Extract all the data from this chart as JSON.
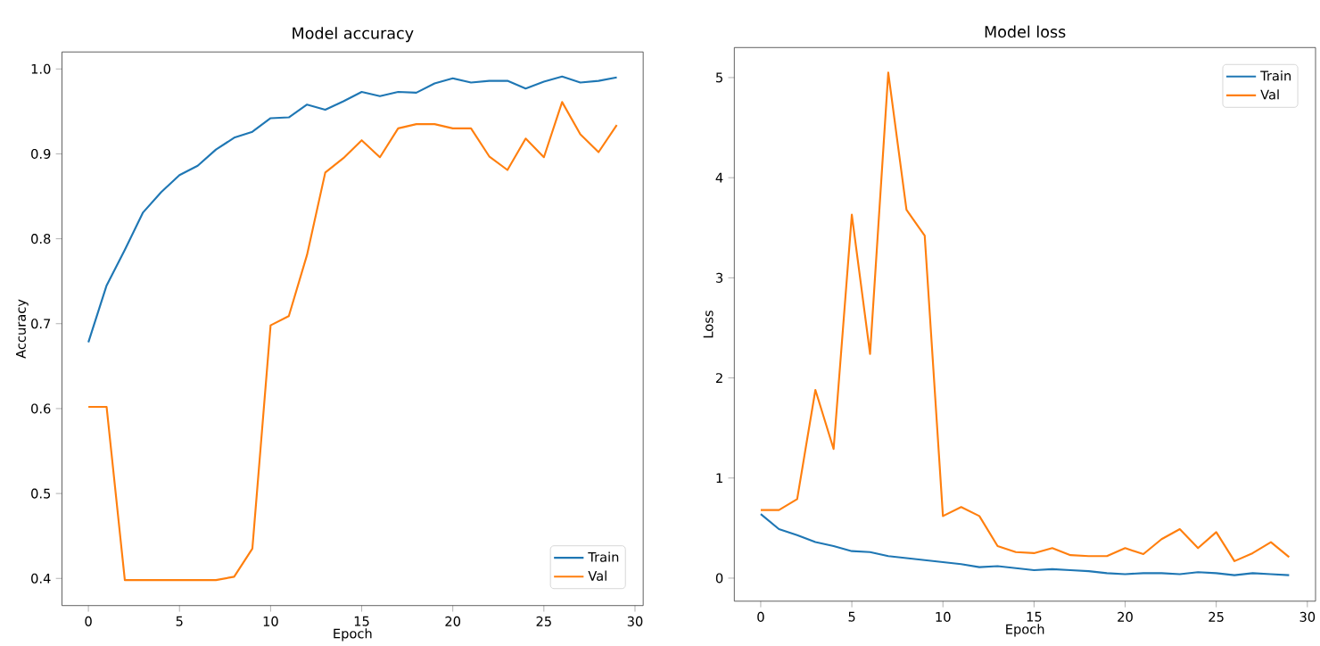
{
  "chart_data": [
    {
      "type": "line",
      "title": "Model accuracy",
      "xlabel": "Epoch",
      "ylabel": "Accuracy",
      "legend": "bottom right",
      "x": [
        0,
        1,
        2,
        3,
        4,
        5,
        6,
        7,
        8,
        9,
        10,
        11,
        12,
        13,
        14,
        15,
        16,
        17,
        18,
        19,
        20,
        21,
        22,
        23,
        24,
        25,
        26,
        27,
        28,
        29
      ],
      "xlim": [
        -1.45,
        30.45
      ],
      "xticks": [
        0,
        5,
        10,
        15,
        20,
        25,
        30
      ],
      "ylim": [
        0.368,
        1.02
      ],
      "yticks": [
        0.4,
        0.5,
        0.6,
        0.7,
        0.8,
        0.9,
        {
          "value": 1,
          "label": "1.0"
        }
      ],
      "series": [
        {
          "name": "Train",
          "color": "#1f77b4",
          "values": [
            0.678,
            0.745,
            0.787,
            0.831,
            0.855,
            0.875,
            0.886,
            0.905,
            0.919,
            0.926,
            0.942,
            0.943,
            0.958,
            0.952,
            0.962,
            0.973,
            0.968,
            0.973,
            0.972,
            0.983,
            0.989,
            0.984,
            0.986,
            0.986,
            0.977,
            0.985,
            0.991,
            0.984,
            0.986,
            0.99
          ]
        },
        {
          "name": "Val",
          "color": "#ff7f0e",
          "values": [
            0.602,
            0.602,
            0.398,
            0.398,
            0.398,
            0.398,
            0.398,
            0.398,
            0.402,
            0.435,
            0.698,
            0.709,
            0.781,
            0.878,
            0.895,
            0.916,
            0.896,
            0.93,
            0.935,
            0.935,
            0.93,
            0.93,
            0.897,
            0.881,
            0.918,
            0.896,
            0.961,
            0.923,
            0.902,
            0.934
          ]
        }
      ]
    },
    {
      "type": "line",
      "title": "Model loss",
      "xlabel": "Epoch",
      "ylabel": "Loss",
      "legend": "top right",
      "x": [
        0,
        1,
        2,
        3,
        4,
        5,
        6,
        7,
        8,
        9,
        10,
        11,
        12,
        13,
        14,
        15,
        16,
        17,
        18,
        19,
        20,
        21,
        22,
        23,
        24,
        25,
        26,
        27,
        28,
        29
      ],
      "xlim": [
        -1.45,
        30.45
      ],
      "xticks": [
        0,
        5,
        10,
        15,
        20,
        25,
        30
      ],
      "ylim": [
        -0.23,
        5.3
      ],
      "yticks": [
        0,
        1,
        2,
        3,
        4,
        5
      ],
      "series": [
        {
          "name": "Train",
          "color": "#1f77b4",
          "values": [
            0.64,
            0.49,
            0.43,
            0.36,
            0.32,
            0.27,
            0.26,
            0.22,
            0.2,
            0.18,
            0.16,
            0.14,
            0.11,
            0.12,
            0.1,
            0.08,
            0.09,
            0.08,
            0.07,
            0.05,
            0.04,
            0.05,
            0.05,
            0.04,
            0.06,
            0.05,
            0.03,
            0.05,
            0.04,
            0.03
          ]
        },
        {
          "name": "Val",
          "color": "#ff7f0e",
          "values": [
            0.68,
            0.68,
            0.79,
            1.88,
            1.29,
            3.63,
            2.24,
            5.05,
            3.68,
            3.42,
            0.62,
            0.71,
            0.62,
            0.32,
            0.26,
            0.25,
            0.3,
            0.23,
            0.22,
            0.22,
            0.3,
            0.24,
            0.39,
            0.49,
            0.3,
            0.46,
            0.17,
            0.25,
            0.36,
            0.21
          ]
        }
      ]
    }
  ]
}
